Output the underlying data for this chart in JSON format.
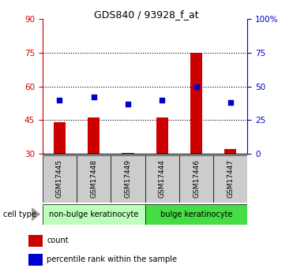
{
  "title": "GDS840 / 93928_f_at",
  "samples": [
    "GSM17445",
    "GSM17448",
    "GSM17449",
    "GSM17444",
    "GSM17446",
    "GSM17447"
  ],
  "bar_values": [
    44.0,
    46.0,
    30.5,
    46.0,
    75.0,
    32.0
  ],
  "percentile_values": [
    40.0,
    42.0,
    37.0,
    40.0,
    50.0,
    38.0
  ],
  "bar_color": "#cc0000",
  "dot_color": "#0000cc",
  "bar_bottom": 30,
  "left_ylim": [
    30,
    90
  ],
  "left_yticks": [
    30,
    45,
    60,
    75,
    90
  ],
  "right_ylim": [
    0,
    100
  ],
  "right_yticks": [
    0,
    25,
    50,
    75,
    100
  ],
  "right_yticklabels": [
    "0",
    "25",
    "50",
    "75",
    "100%"
  ],
  "dotted_lines": [
    45,
    60,
    75
  ],
  "groups": [
    {
      "label": "non-bulge keratinocyte",
      "start": 0,
      "end": 3,
      "color": "#bbffbb"
    },
    {
      "label": "bulge keratinocyte",
      "start": 3,
      "end": 6,
      "color": "#44dd44"
    }
  ],
  "cell_type_label": "cell type",
  "legend_items": [
    {
      "label": "count",
      "color": "#cc0000"
    },
    {
      "label": "percentile rank within the sample",
      "color": "#0000cc"
    }
  ],
  "left_axis_color": "#cc0000",
  "right_axis_color": "#0000cc",
  "bar_width": 0.35,
  "dot_size": 25,
  "sample_cell_color": "#cccccc",
  "bg_color": "#ffffff"
}
